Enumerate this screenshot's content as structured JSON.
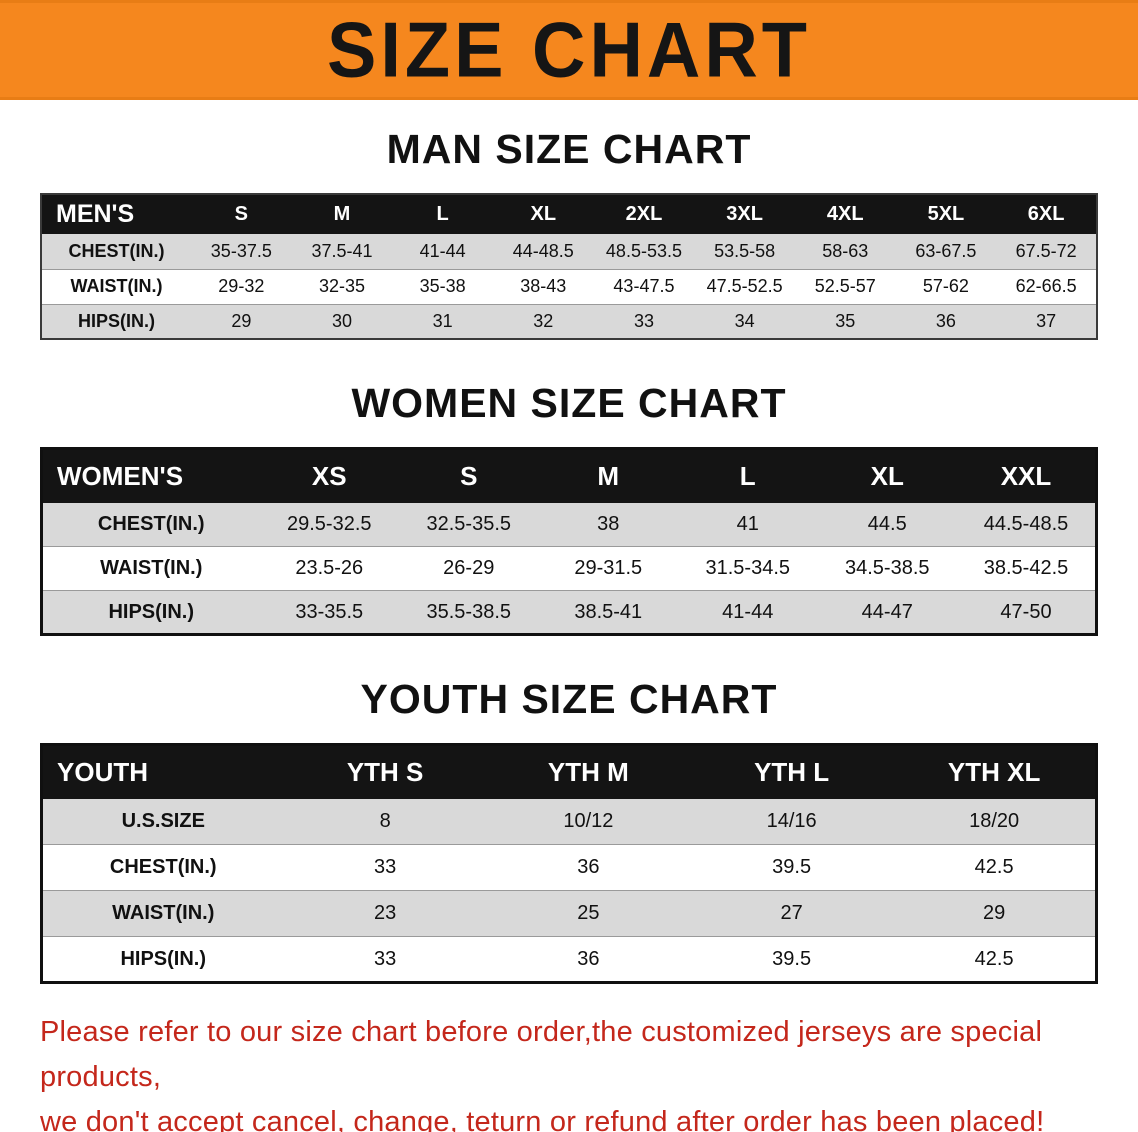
{
  "banner": {
    "title": "SIZE CHART",
    "background_color": "#F5871E",
    "text_color": "#151515"
  },
  "sections": [
    {
      "heading": "MAN SIZE CHART",
      "table": {
        "header": [
          "MEN'S",
          "S",
          "M",
          "L",
          "XL",
          "2XL",
          "3XL",
          "4XL",
          "5XL",
          "6XL"
        ],
        "rows": [
          [
            "CHEST(IN.)",
            "35-37.5",
            "37.5-41",
            "41-44",
            "44-48.5",
            "48.5-53.5",
            "53.5-58",
            "58-63",
            "63-67.5",
            "67.5-72"
          ],
          [
            "WAIST(IN.)",
            "29-32",
            "32-35",
            "35-38",
            "38-43",
            "43-47.5",
            "47.5-52.5",
            "52.5-57",
            "57-62",
            "62-66.5"
          ],
          [
            "HIPS(IN.)",
            "29",
            "30",
            "31",
            "32",
            "33",
            "34",
            "35",
            "36",
            "37"
          ]
        ]
      }
    },
    {
      "heading": "WOMEN SIZE CHART",
      "table": {
        "header": [
          "WOMEN'S",
          "XS",
          "S",
          "M",
          "L",
          "XL",
          "XXL"
        ],
        "rows": [
          [
            "CHEST(IN.)",
            "29.5-32.5",
            "32.5-35.5",
            "38",
            "41",
            "44.5",
            "44.5-48.5"
          ],
          [
            "WAIST(IN.)",
            "23.5-26",
            "26-29",
            "29-31.5",
            "31.5-34.5",
            "34.5-38.5",
            "38.5-42.5"
          ],
          [
            "HIPS(IN.)",
            "33-35.5",
            "35.5-38.5",
            "38.5-41",
            "41-44",
            "44-47",
            "47-50"
          ]
        ]
      }
    },
    {
      "heading": "YOUTH SIZE CHART",
      "table": {
        "header": [
          "YOUTH",
          "YTH S",
          "YTH M",
          "YTH L",
          "YTH XL"
        ],
        "rows": [
          [
            "U.S.SIZE",
            "8",
            "10/12",
            "14/16",
            "18/20"
          ],
          [
            "CHEST(IN.)",
            "33",
            "36",
            "39.5",
            "42.5"
          ],
          [
            "WAIST(IN.)",
            "23",
            "25",
            "27",
            "29"
          ],
          [
            "HIPS(IN.)",
            "33",
            "36",
            "39.5",
            "42.5"
          ]
        ]
      }
    }
  ],
  "disclaimer": {
    "line1": "Please refer to our size chart before order,the customized jerseys are special products,",
    "line2": "we don't accept cancel, change, teturn or refund after order has been placed!",
    "text_color": "#C4271B"
  },
  "colors": {
    "banner_orange": "#F5871E",
    "table_header_black": "#141414",
    "row_stripe_gray": "#D9D9D9",
    "disclaimer_red": "#C4271B"
  }
}
